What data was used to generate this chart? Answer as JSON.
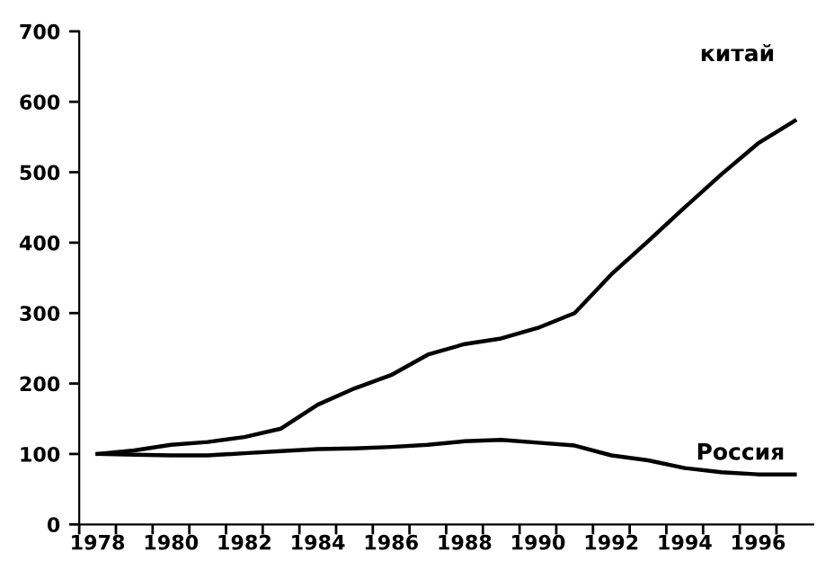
{
  "chart_data": {
    "type": "line",
    "categories": [
      "1978",
      null,
      "1980",
      null,
      "1982",
      null,
      "1984",
      null,
      "1986",
      null,
      "1988",
      null,
      "1990",
      null,
      "1992",
      null,
      "1994",
      null,
      "1996",
      null
    ],
    "series": [
      {
        "name": "китай",
        "color": "#000000",
        "values": [
          100,
          105,
          113,
          117,
          124,
          136,
          170,
          193,
          212,
          241,
          256,
          264,
          279,
          300,
          355,
          402,
          450,
          497,
          541,
          573
        ]
      },
      {
        "name": "Россия",
        "color": "#000000",
        "values": [
          100,
          99,
          98,
          98,
          101,
          104,
          107,
          108,
          110,
          113,
          118,
          120,
          116,
          112,
          98,
          91,
          80,
          74,
          71,
          71
        ]
      }
    ],
    "ylim": [
      0,
      700
    ],
    "yticks": [
      0,
      100,
      200,
      300,
      400,
      500,
      600,
      700
    ],
    "grid": false,
    "legend": false,
    "marker": "none",
    "line_style": "solid"
  }
}
